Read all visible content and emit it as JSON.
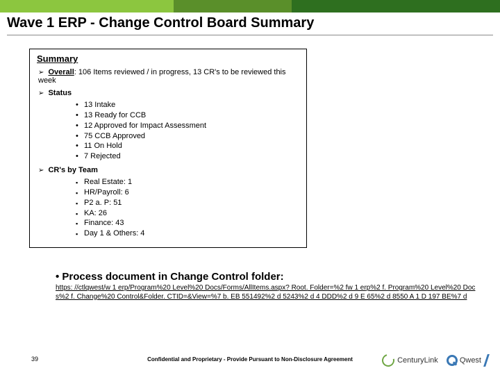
{
  "colors": {
    "topbar": [
      "#8cc63f",
      "#5a8f2a",
      "#2e6f1f"
    ],
    "rule": "#888888",
    "text": "#000000"
  },
  "title": "Wave 1 ERP - Change Control Board Summary",
  "summary": {
    "heading": "Summary",
    "overall": {
      "label": "Overall",
      "text": ":  106 Items reviewed / in progress, 13 CR's to be reviewed this week"
    },
    "status": {
      "label": "Status",
      "items": [
        "13 Intake",
        "13 Ready for CCB",
        "12 Approved for Impact Assessment",
        "75 CCB Approved",
        "11 On Hold",
        "  7 Rejected"
      ]
    },
    "crs_by_team": {
      "label": "CR's by Team",
      "items": [
        "Real Estate:  1",
        "HR/Payroll:  6",
        "P2 a. P:  51",
        "KA:  26",
        "Finance:  43",
        "Day 1 & Others:  4"
      ]
    }
  },
  "link": {
    "heading": "Process document in Change Control folder:",
    "url": "https: //ctlqwest/w 1 erp/Program%20 Level%20 Docs/Forms/AllItems.aspx? Root. Folder=%2 fw 1 erp%2 f. Program%20 Level%20 Docs%2 f. Change%20 Control&Folder. CTID=&View=%7 b. EB 551492%2 d 5243%2 d 4 DDD%2 d 9 E 65%2 d 8550 A 1 D 197 BE%7 d"
  },
  "footer": {
    "page": "39",
    "confidential": "Confidential and Proprietary - Provide Pursuant to Non-Disclosure Agreement",
    "logo1": "CenturyLink",
    "logo2": "Qwest"
  }
}
